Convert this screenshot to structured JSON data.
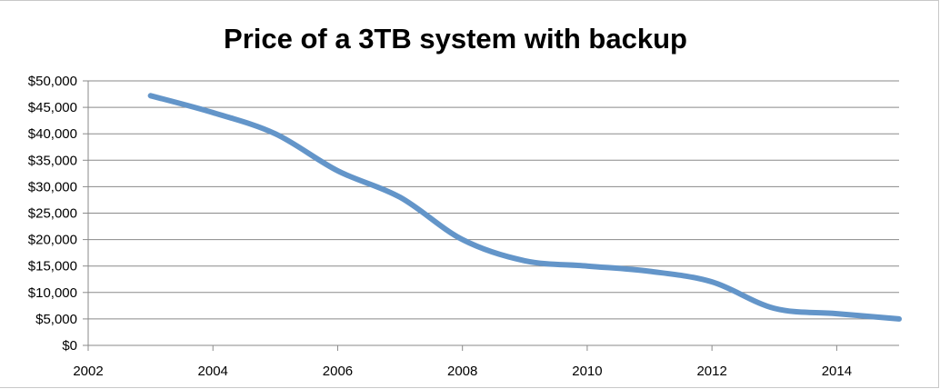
{
  "chart_data": {
    "type": "line",
    "title": "Price of a 3TB system with backup",
    "xlabel": "",
    "ylabel": "",
    "xlim": [
      2002,
      2015
    ],
    "ylim": [
      0,
      50000
    ],
    "x_ticks": [
      2002,
      2004,
      2006,
      2008,
      2010,
      2012,
      2014
    ],
    "x_tick_labels": [
      "2002",
      "2004",
      "2006",
      "2008",
      "2010",
      "2012",
      "2014"
    ],
    "y_ticks": [
      0,
      5000,
      10000,
      15000,
      20000,
      25000,
      30000,
      35000,
      40000,
      45000,
      50000
    ],
    "y_tick_labels": [
      "$0",
      "$5,000",
      "$10,000",
      "$15,000",
      "$20,000",
      "$25,000",
      "$30,000",
      "$35,000",
      "$40,000",
      "$45,000",
      "$50,000"
    ],
    "grid": "horizontal",
    "legend": "none",
    "series": [
      {
        "color": "#6395c9",
        "x": [
          2003,
          2004,
          2005,
          2006,
          2007,
          2008,
          2009,
          2010,
          2011,
          2012,
          2013,
          2014,
          2015
        ],
        "y": [
          47200,
          44000,
          40000,
          33000,
          28000,
          20000,
          16000,
          15000,
          14000,
          12000,
          7000,
          6000,
          5000
        ]
      }
    ]
  }
}
